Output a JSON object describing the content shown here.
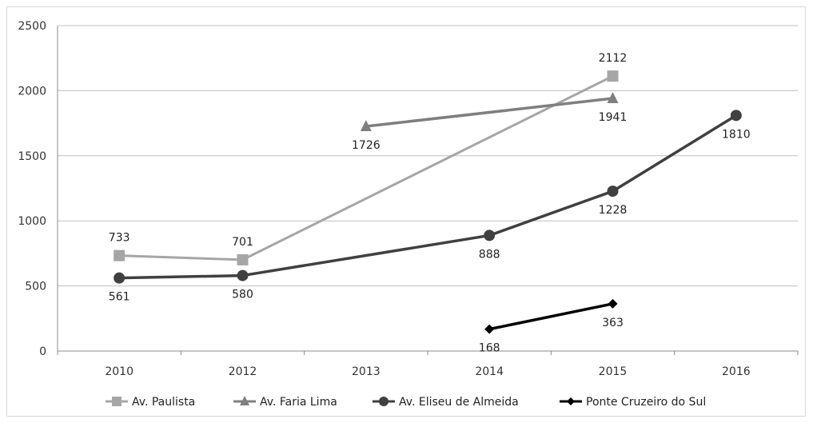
{
  "chart_data": {
    "type": "line",
    "categories": [
      "2010",
      "2012",
      "2013",
      "2014",
      "2015",
      "2016"
    ],
    "ylim": [
      0,
      2500
    ],
    "yticks": [
      0,
      500,
      1000,
      1500,
      2000,
      2500
    ],
    "grid": true,
    "legend_position": "bottom",
    "series": [
      {
        "name": "Av. Paulista",
        "values": [
          733,
          701,
          null,
          null,
          2112,
          null
        ],
        "color": "#a6a6a6",
        "marker": "square"
      },
      {
        "name": "Av. Faria Lima",
        "values": [
          null,
          null,
          1726,
          null,
          1941,
          null
        ],
        "color": "#7f7f7f",
        "marker": "triangle"
      },
      {
        "name": "Av. Eliseu de Almeida",
        "values": [
          561,
          580,
          null,
          888,
          1228,
          1810
        ],
        "color": "#404040",
        "marker": "circle"
      },
      {
        "name": "Ponte Cruzeiro do Sul",
        "values": [
          null,
          null,
          null,
          168,
          363,
          null
        ],
        "color": "#000000",
        "marker": "diamond"
      }
    ]
  }
}
